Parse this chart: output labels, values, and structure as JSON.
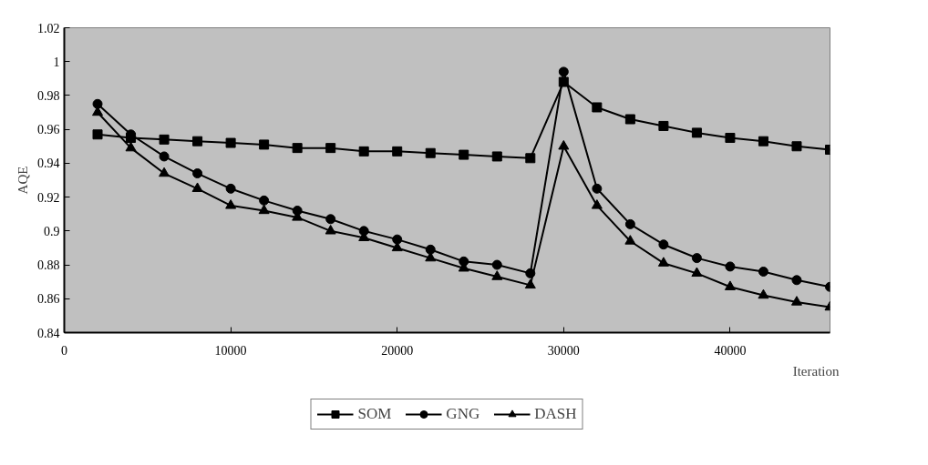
{
  "chart_data": {
    "type": "line",
    "xlabel": "Iteration",
    "ylabel": "AQE",
    "x": [
      2000,
      4000,
      6000,
      8000,
      10000,
      12000,
      14000,
      16000,
      18000,
      20000,
      22000,
      24000,
      26000,
      28000,
      30000,
      32000,
      34000,
      36000,
      38000,
      40000,
      42000,
      44000,
      46000
    ],
    "series": [
      {
        "name": "SOM",
        "color": "#000000",
        "marker": "square",
        "values": [
          0.957,
          0.955,
          0.954,
          0.953,
          0.952,
          0.951,
          0.949,
          0.949,
          0.947,
          0.947,
          0.946,
          0.945,
          0.944,
          0.943,
          0.988,
          0.973,
          0.966,
          0.962,
          0.958,
          0.955,
          0.953,
          0.95,
          0.948
        ]
      },
      {
        "name": "GNG",
        "color": "#000000",
        "marker": "circle",
        "values": [
          0.975,
          0.957,
          0.944,
          0.934,
          0.925,
          0.918,
          0.912,
          0.907,
          0.9,
          0.895,
          0.889,
          0.882,
          0.88,
          0.875,
          0.994,
          0.925,
          0.904,
          0.892,
          0.884,
          0.879,
          0.876,
          0.871,
          0.867
        ]
      },
      {
        "name": "DASH",
        "color": "#000000",
        "marker": "triangle",
        "values": [
          0.97,
          0.949,
          0.934,
          0.925,
          0.915,
          0.912,
          0.908,
          0.9,
          0.896,
          0.89,
          0.884,
          0.878,
          0.873,
          0.868,
          0.95,
          0.915,
          0.894,
          0.881,
          0.875,
          0.867,
          0.862,
          0.858,
          0.855
        ]
      }
    ],
    "xlim": [
      0,
      46000
    ],
    "xticks": [
      0,
      10000,
      20000,
      30000,
      40000
    ],
    "ylim": [
      0.84,
      1.02
    ],
    "yticks": [
      0.84,
      0.86,
      0.88,
      0.9,
      0.92,
      0.94,
      0.96,
      0.98,
      1,
      1.02
    ],
    "grid": false,
    "legend": "bottom",
    "line_style": "solid"
  }
}
